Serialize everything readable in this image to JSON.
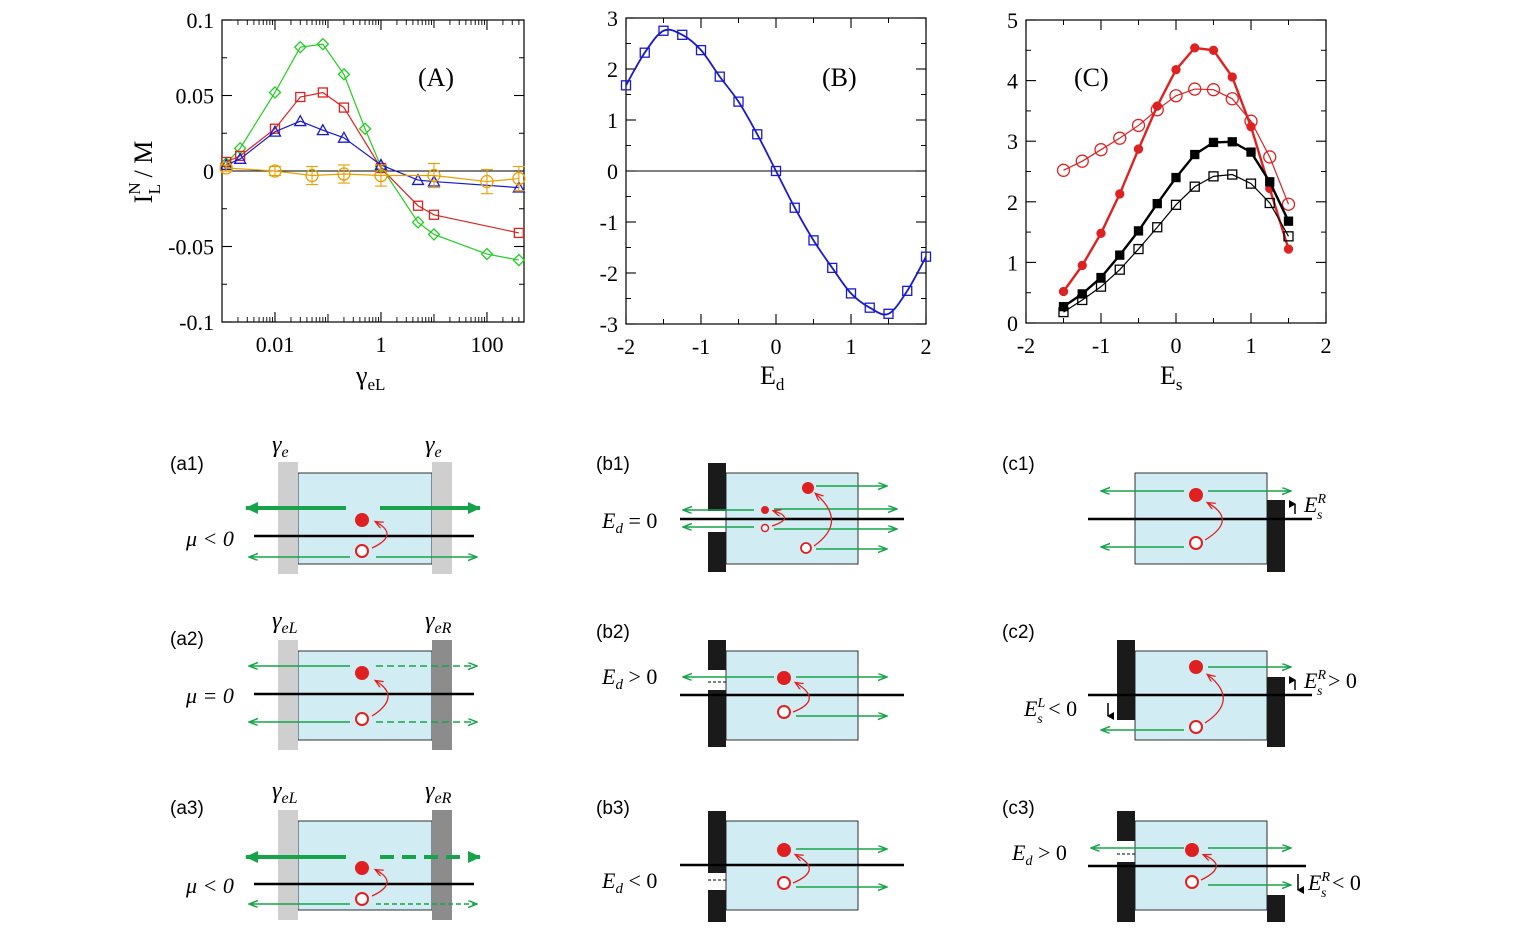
{
  "colors": {
    "green": "#22cc22",
    "red": "#dd2222",
    "blue": "#1a1acc",
    "orange": "#e8a000",
    "black": "#000000",
    "arrow_green": "#16a34a",
    "channel_fill": "#d2ecf3",
    "barrier_light": "#cfcfcf",
    "barrier_dark": "#8c8c8c",
    "barrier_black": "#1a1a1a",
    "particle_red": "#e02020"
  },
  "chart_data": [
    {
      "type": "scatter",
      "panel": "(A)",
      "xscale": "log",
      "xlabel": "γ",
      "xlabel_sub": "eL",
      "ylabel_main": "I",
      "ylabel_sup": "N",
      "ylabel_sub": "L",
      "ylabel_tail": " / M",
      "xlim": [
        0.001,
        500
      ],
      "ylim": [
        -0.1,
        0.1
      ],
      "x_ticks": [
        {
          "v": 0.01,
          "label": "0.01"
        },
        {
          "v": 1,
          "label": "1"
        },
        {
          "v": 100,
          "label": "100"
        }
      ],
      "y_ticks": [
        {
          "v": 0.1,
          "label": "0.1"
        },
        {
          "v": 0.05,
          "label": "0.05"
        },
        {
          "v": 0,
          "label": "0"
        },
        {
          "v": -0.05,
          "label": "-0.05"
        },
        {
          "v": -0.1,
          "label": "-0.1"
        }
      ],
      "series": [
        {
          "name": "green",
          "color": "green",
          "marker": "diamond",
          "filled": false,
          "x": [
            0.0012,
            0.0022,
            0.01,
            0.03,
            0.08,
            0.2,
            0.5,
            1,
            5,
            10,
            100,
            400
          ],
          "y": [
            0.005,
            0.015,
            0.052,
            0.082,
            0.084,
            0.064,
            0.028,
            0.003,
            -0.034,
            -0.042,
            -0.055,
            -0.059
          ]
        },
        {
          "name": "red",
          "color": "red",
          "marker": "square",
          "filled": false,
          "x": [
            0.0012,
            0.0022,
            0.01,
            0.03,
            0.08,
            0.2,
            1,
            5,
            10,
            400
          ],
          "y": [
            0.006,
            0.01,
            0.028,
            0.049,
            0.052,
            0.042,
            0.002,
            -0.023,
            -0.029,
            -0.041
          ]
        },
        {
          "name": "blue",
          "color": "blue",
          "marker": "triangle",
          "filled": false,
          "x": [
            0.0012,
            0.0022,
            0.01,
            0.03,
            0.08,
            0.2,
            1,
            5,
            10,
            400
          ],
          "y": [
            0.004,
            0.008,
            0.026,
            0.033,
            0.027,
            0.022,
            0.004,
            -0.006,
            -0.007,
            -0.011
          ]
        },
        {
          "name": "orange",
          "color": "orange",
          "marker": "circle",
          "filled": false,
          "x": [
            0.0012,
            0.01,
            0.05,
            0.2,
            1,
            10,
            100,
            400
          ],
          "y": [
            0.002,
            0.0,
            -0.003,
            -0.002,
            -0.003,
            -0.003,
            -0.007,
            -0.005
          ],
          "err": [
            0.002,
            0.003,
            0.006,
            0.006,
            0.007,
            0.008,
            0.008,
            0.008
          ]
        }
      ],
      "annotation": "(A)"
    },
    {
      "type": "line",
      "panel": "(B)",
      "xlabel": "E",
      "xlabel_sub": "d",
      "xlim": [
        -2,
        2
      ],
      "ylim": [
        -3,
        3
      ],
      "x_ticks": [
        {
          "v": -2,
          "label": "-2"
        },
        {
          "v": -1,
          "label": "-1"
        },
        {
          "v": 0,
          "label": "0"
        },
        {
          "v": 1,
          "label": "1"
        },
        {
          "v": 2,
          "label": "2"
        }
      ],
      "y_ticks": [
        {
          "v": 3,
          "label": "3"
        },
        {
          "v": 2,
          "label": "2"
        },
        {
          "v": 1,
          "label": "1"
        },
        {
          "v": 0,
          "label": "0"
        },
        {
          "v": -1,
          "label": "-1"
        },
        {
          "v": -2,
          "label": "-2"
        },
        {
          "v": -3,
          "label": "-3"
        }
      ],
      "series": [
        {
          "name": "blue",
          "color": "blue",
          "marker": "square",
          "filled": false,
          "x": [
            -2,
            -1.75,
            -1.5,
            -1.25,
            -1,
            -0.75,
            -0.5,
            -0.25,
            0,
            0.25,
            0.5,
            0.75,
            1,
            1.25,
            1.5,
            1.75,
            2
          ],
          "y": [
            1.68,
            2.32,
            2.75,
            2.67,
            2.37,
            1.85,
            1.36,
            0.72,
            0.0,
            -0.72,
            -1.36,
            -1.9,
            -2.4,
            -2.68,
            -2.8,
            -2.35,
            -1.68
          ]
        }
      ],
      "annotation": "(B)"
    },
    {
      "type": "line",
      "panel": "(C)",
      "xlabel": "E",
      "xlabel_sub": "s",
      "xlim": [
        -2,
        2
      ],
      "ylim": [
        0,
        5
      ],
      "x_ticks": [
        {
          "v": -2,
          "label": "-2"
        },
        {
          "v": -1,
          "label": "-1"
        },
        {
          "v": 0,
          "label": "0"
        },
        {
          "v": 1,
          "label": "1"
        },
        {
          "v": 2,
          "label": "2"
        }
      ],
      "y_ticks": [
        {
          "v": 5,
          "label": "5"
        },
        {
          "v": 4,
          "label": "4"
        },
        {
          "v": 3,
          "label": "3"
        },
        {
          "v": 2,
          "label": "2"
        },
        {
          "v": 1,
          "label": "1"
        },
        {
          "v": 0,
          "label": "0"
        }
      ],
      "series": [
        {
          "name": "red-filled",
          "color": "red",
          "marker": "circle",
          "filled": true,
          "x": [
            -1.5,
            -1.25,
            -1,
            -0.75,
            -0.5,
            -0.25,
            0,
            0.25,
            0.5,
            0.75,
            1,
            1.25,
            1.5
          ],
          "y": [
            0.52,
            0.95,
            1.48,
            2.13,
            2.87,
            3.58,
            4.18,
            4.54,
            4.5,
            4.06,
            3.24,
            2.22,
            1.22
          ]
        },
        {
          "name": "red-open",
          "color": "red",
          "marker": "circle",
          "filled": false,
          "x": [
            -1.5,
            -1.25,
            -1,
            -0.75,
            -0.5,
            -0.25,
            0,
            0.25,
            0.5,
            0.75,
            1,
            1.25,
            1.5
          ],
          "y": [
            2.52,
            2.67,
            2.86,
            3.05,
            3.26,
            3.52,
            3.75,
            3.86,
            3.85,
            3.7,
            3.33,
            2.74,
            1.96
          ]
        },
        {
          "name": "black-filled",
          "color": "black",
          "marker": "square",
          "filled": true,
          "x": [
            -1.5,
            -1.25,
            -1,
            -0.75,
            -0.5,
            -0.25,
            0,
            0.25,
            0.5,
            0.75,
            1,
            1.25,
            1.5
          ],
          "y": [
            0.27,
            0.48,
            0.75,
            1.12,
            1.52,
            1.97,
            2.4,
            2.78,
            2.98,
            2.99,
            2.82,
            2.33,
            1.68
          ]
        },
        {
          "name": "black-open",
          "color": "black",
          "marker": "square",
          "filled": false,
          "x": [
            -1.5,
            -1.25,
            -1,
            -0.75,
            -0.5,
            -0.25,
            0,
            0.25,
            0.5,
            0.75,
            1,
            1.25,
            1.5
          ],
          "y": [
            0.18,
            0.38,
            0.6,
            0.88,
            1.22,
            1.58,
            1.95,
            2.25,
            2.42,
            2.45,
            2.3,
            1.98,
            1.43
          ]
        }
      ],
      "annotation": "(C)"
    }
  ],
  "diagrams": {
    "a1": {
      "panel_label": "(a1)",
      "gamma_left": "γ",
      "gamma_left_sub": "e",
      "gamma_right": "γ",
      "gamma_right_sub": "e",
      "condition": "μ < 0"
    },
    "a2": {
      "panel_label": "(a2)",
      "gamma_left": "γ",
      "gamma_left_sub": "eL",
      "gamma_right": "γ",
      "gamma_right_sub": "eR",
      "condition": "μ = 0"
    },
    "a3": {
      "panel_label": "(a3)",
      "gamma_left": "γ",
      "gamma_left_sub": "eL",
      "gamma_right": "γ",
      "gamma_right_sub": "eR",
      "condition": "μ < 0"
    },
    "b1": {
      "panel_label": "(b1)",
      "condition_main": "E",
      "condition_sub": "d",
      "condition_tail": " = 0"
    },
    "b2": {
      "panel_label": "(b2)",
      "condition_main": "E",
      "condition_sub": "d",
      "condition_tail": " > 0"
    },
    "b3": {
      "panel_label": "(b3)",
      "condition_main": "E",
      "condition_sub": "d",
      "condition_tail": " < 0"
    },
    "c1": {
      "panel_label": "(c1)",
      "right_main": "E",
      "right_sup": "R",
      "right_sub": "s",
      "right_tail": ""
    },
    "c2": {
      "panel_label": "(c2)",
      "right_main": "E",
      "right_sup": "R",
      "right_sub": "s",
      "right_tail": " > 0",
      "left_main": "E",
      "left_sup": "L",
      "left_sub": "s",
      "left_tail": " < 0"
    },
    "c3": {
      "panel_label": "(c3)",
      "left_main": "E",
      "left_sub": "d",
      "left_tail": " > 0",
      "right_main": "E",
      "right_sup": "R",
      "right_sub": "s",
      "right_tail": " < 0"
    }
  }
}
